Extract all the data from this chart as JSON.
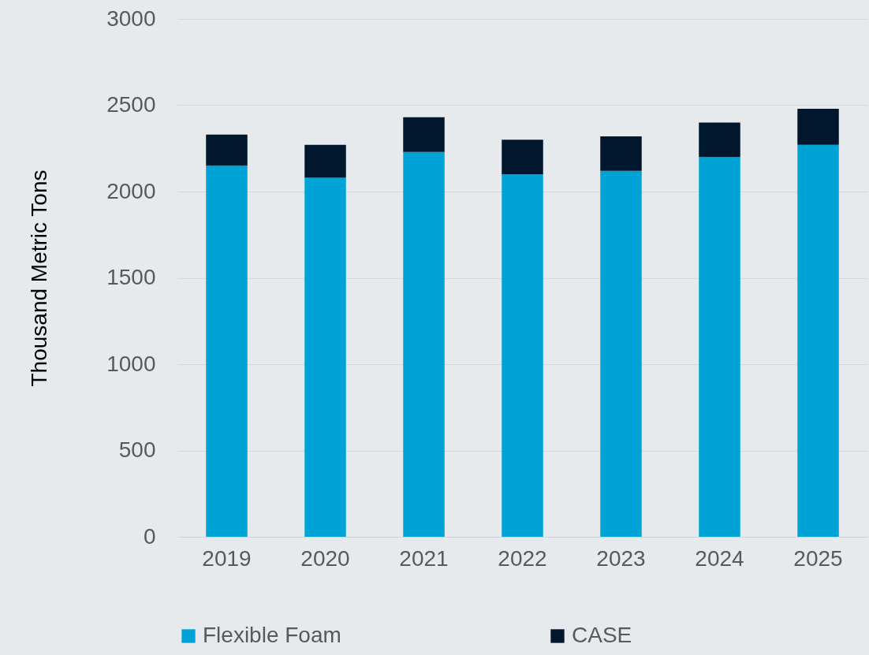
{
  "chart_data": {
    "type": "bar",
    "stacked": true,
    "ylabel": "Thousand Metric Tons",
    "categories": [
      "2019",
      "2020",
      "2021",
      "2022",
      "2023",
      "2024",
      "2025"
    ],
    "series": [
      {
        "name": "Flexible Foam",
        "color": "#00a3d6",
        "values": [
          2150,
          2080,
          2230,
          2100,
          2120,
          2200,
          2270
        ]
      },
      {
        "name": "CASE",
        "color": "#00172e",
        "values": [
          180,
          190,
          200,
          200,
          200,
          200,
          210
        ]
      }
    ],
    "ylim": [
      0,
      3000
    ],
    "yticks": [
      0,
      500,
      1000,
      1500,
      2000,
      2500,
      3000
    ],
    "grid": "y",
    "legend": "bottom"
  }
}
